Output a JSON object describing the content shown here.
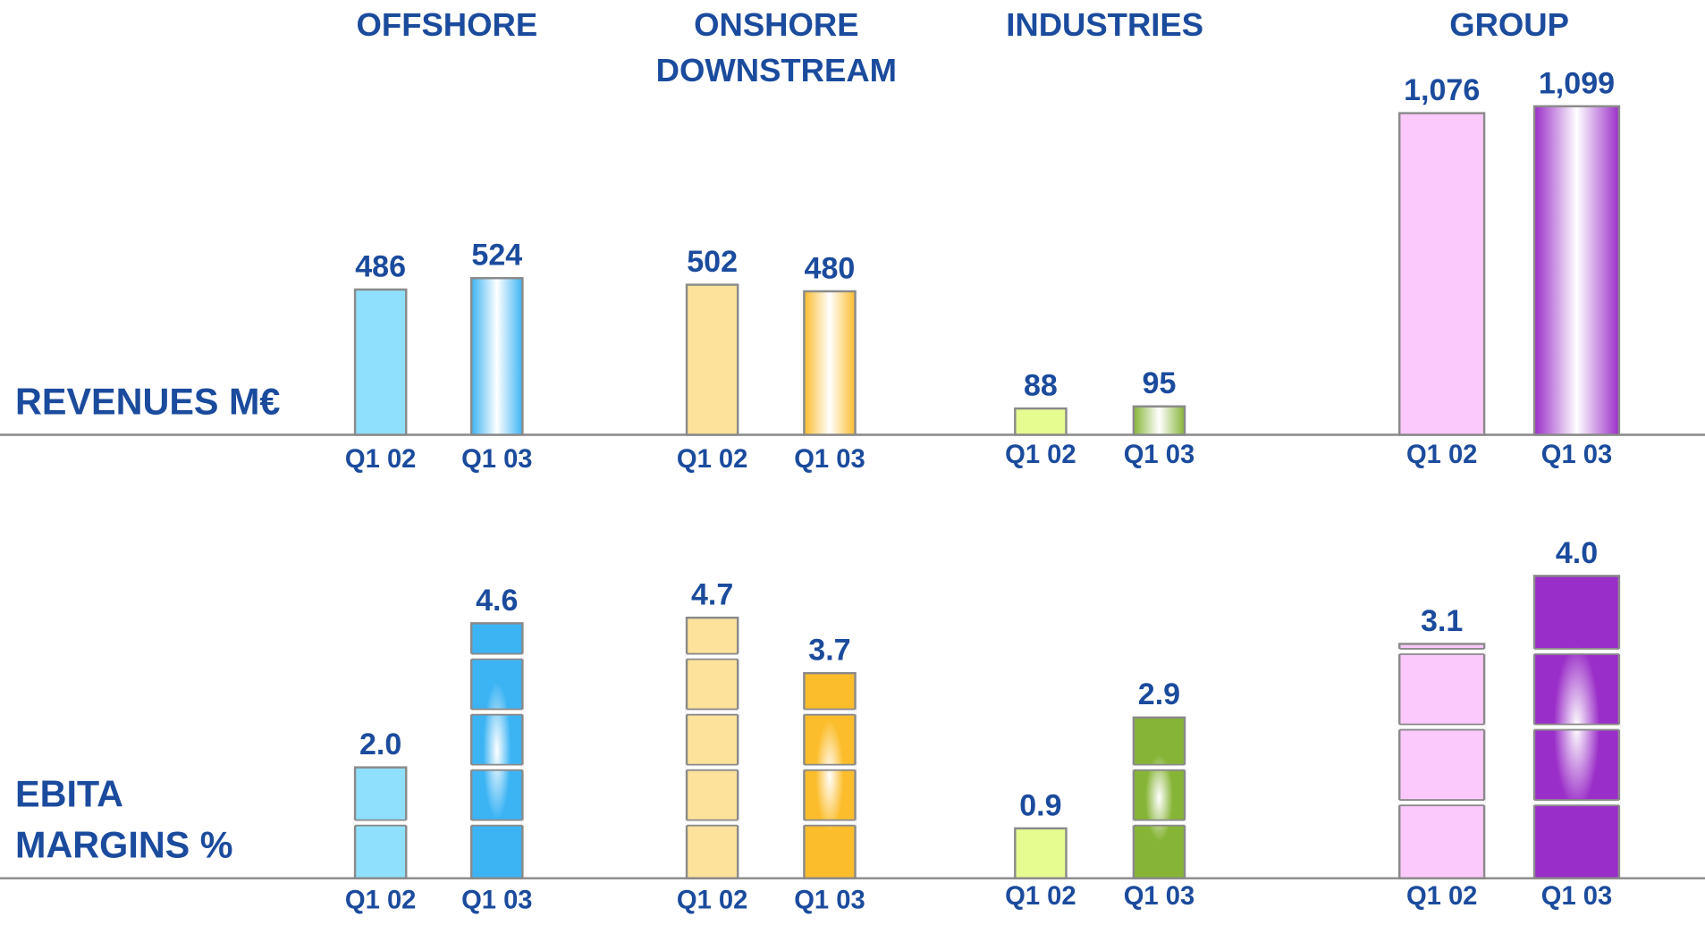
{
  "chart_data": [
    {
      "type": "bar",
      "title": [
        "REVENUES M€"
      ],
      "categories": [
        "Q1 02",
        "Q1 03"
      ],
      "ylim": [
        0,
        1200
      ],
      "series": [
        {
          "name": [
            "OFFSHORE"
          ],
          "colors": [
            "#8fe0fc",
            "#3cb4f4"
          ],
          "values": [
            486,
            524
          ],
          "value_labels": [
            "486",
            "524"
          ]
        },
        {
          "name": [
            "ONSHORE",
            "DOWNSTREAM"
          ],
          "colors": [
            "#fde29b",
            "#fbbd2c"
          ],
          "values": [
            502,
            480
          ],
          "value_labels": [
            "502",
            "480"
          ]
        },
        {
          "name": [
            "INDUSTRIES"
          ],
          "colors": [
            "#e6fb90",
            "#86b436"
          ],
          "values": [
            88,
            95
          ],
          "value_labels": [
            "88",
            "95"
          ]
        },
        {
          "name": [
            "GROUP"
          ],
          "colors": [
            "#fcc9fc",
            "#9a2ec8"
          ],
          "values": [
            1076,
            1099
          ],
          "value_labels": [
            "1,076",
            "1,099"
          ]
        }
      ]
    },
    {
      "type": "bar",
      "title": [
        "EBITA",
        "MARGINS %"
      ],
      "categories": [
        "Q1 02",
        "Q1 03"
      ],
      "ylim": [
        0,
        6
      ],
      "series": [
        {
          "colors": [
            "#8fe0fc",
            "#3cb4f4"
          ],
          "values": [
            2.0,
            4.6
          ],
          "value_labels": [
            "2.0",
            "4.6"
          ]
        },
        {
          "colors": [
            "#fde29b",
            "#fbbd2c"
          ],
          "values": [
            4.7,
            3.7
          ],
          "value_labels": [
            "4.7",
            "3.7"
          ]
        },
        {
          "colors": [
            "#e6fb90",
            "#86b436"
          ],
          "values": [
            0.9,
            2.9
          ],
          "value_labels": [
            "0.9",
            "2.9"
          ]
        },
        {
          "colors": [
            "#fcc9fc",
            "#9a2ec8"
          ],
          "values": [
            3.1,
            4.0
          ],
          "value_labels": [
            "3.1",
            "4.0"
          ],
          "ylim": [
            0,
            4.4
          ]
        }
      ]
    }
  ]
}
